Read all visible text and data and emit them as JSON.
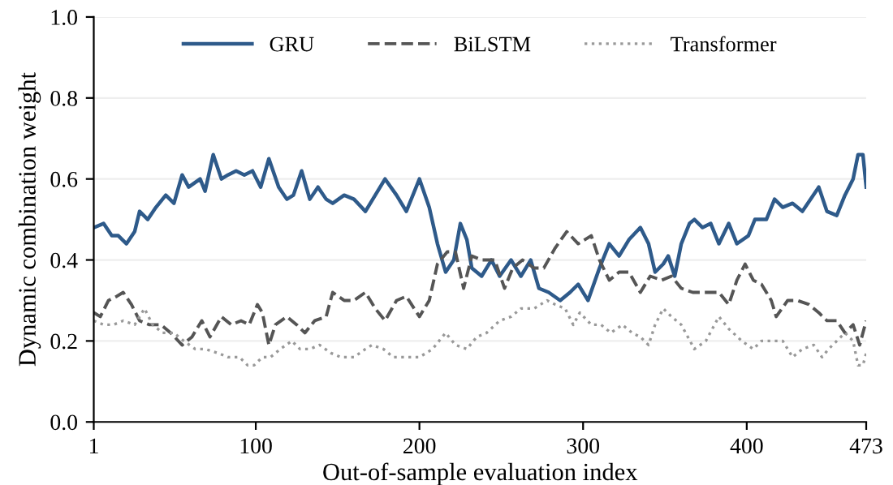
{
  "chart_data": {
    "type": "line",
    "xlabel": "Out-of-sample evaluation index",
    "ylabel": "Dynamic combination weight",
    "xlim": [
      1,
      473
    ],
    "ylim": [
      0,
      1
    ],
    "xticks": [
      1,
      100,
      200,
      300,
      400,
      473
    ],
    "yticks": [
      {
        "value": 0,
        "label": "0.0"
      },
      0.2,
      0.4,
      0.6,
      0.8,
      {
        "value": 1,
        "label": "1.0"
      }
    ],
    "grid": "y",
    "legend": "top",
    "marker": "none",
    "series": [
      {
        "name": "GRU",
        "color": "#2e5a8a",
        "line_style": "solid",
        "x": [
          1,
          7,
          12,
          16,
          21,
          26,
          29,
          34,
          39,
          45,
          50,
          55,
          59,
          66,
          69,
          74,
          79,
          83,
          88,
          93,
          98,
          103,
          108,
          114,
          119,
          123,
          128,
          133,
          138,
          143,
          147,
          154,
          160,
          167,
          173,
          179,
          186,
          192,
          200,
          206,
          211,
          216,
          221,
          225,
          229,
          232,
          238,
          244,
          249,
          256,
          262,
          268,
          273,
          279,
          286,
          292,
          297,
          303,
          310,
          316,
          322,
          328,
          335,
          340,
          344,
          349,
          352,
          356,
          360,
          365,
          368,
          373,
          378,
          383,
          389,
          394,
          401,
          405,
          412,
          417,
          422,
          428,
          434,
          444,
          449,
          455,
          460,
          465,
          468,
          471,
          473
        ],
        "values": [
          0.48,
          0.49,
          0.46,
          0.46,
          0.44,
          0.47,
          0.52,
          0.5,
          0.53,
          0.56,
          0.54,
          0.61,
          0.58,
          0.6,
          0.57,
          0.66,
          0.6,
          0.61,
          0.62,
          0.61,
          0.62,
          0.58,
          0.65,
          0.58,
          0.55,
          0.56,
          0.62,
          0.55,
          0.58,
          0.55,
          0.54,
          0.56,
          0.55,
          0.52,
          0.56,
          0.6,
          0.56,
          0.52,
          0.6,
          0.53,
          0.44,
          0.37,
          0.4,
          0.49,
          0.45,
          0.38,
          0.36,
          0.4,
          0.36,
          0.4,
          0.36,
          0.4,
          0.33,
          0.32,
          0.3,
          0.32,
          0.34,
          0.3,
          0.38,
          0.44,
          0.41,
          0.45,
          0.48,
          0.44,
          0.37,
          0.39,
          0.41,
          0.36,
          0.44,
          0.49,
          0.5,
          0.48,
          0.49,
          0.44,
          0.49,
          0.44,
          0.46,
          0.5,
          0.5,
          0.55,
          0.53,
          0.54,
          0.52,
          0.58,
          0.52,
          0.51,
          0.56,
          0.6,
          0.66,
          0.66,
          0.58
        ]
      },
      {
        "name": "BiLSTM",
        "color": "#555555",
        "line_style": "dashed",
        "x": [
          1,
          5,
          10,
          15,
          19,
          24,
          29,
          35,
          42,
          48,
          55,
          61,
          67,
          72,
          79,
          85,
          91,
          96,
          101,
          104,
          108,
          112,
          119,
          125,
          130,
          136,
          143,
          147,
          154,
          160,
          167,
          173,
          179,
          186,
          192,
          200,
          206,
          211,
          217,
          222,
          227,
          232,
          238,
          246,
          252,
          257,
          263,
          270,
          276,
          283,
          290,
          297,
          305,
          310,
          316,
          322,
          328,
          335,
          341,
          348,
          354,
          360,
          367,
          375,
          383,
          389,
          394,
          399,
          404,
          409,
          415,
          418,
          425,
          431,
          438,
          444,
          449,
          455,
          460,
          465,
          469,
          473
        ],
        "values": [
          0.27,
          0.26,
          0.3,
          0.31,
          0.32,
          0.29,
          0.25,
          0.24,
          0.24,
          0.22,
          0.19,
          0.21,
          0.25,
          0.21,
          0.26,
          0.24,
          0.25,
          0.24,
          0.29,
          0.27,
          0.19,
          0.24,
          0.26,
          0.24,
          0.22,
          0.25,
          0.26,
          0.32,
          0.3,
          0.3,
          0.32,
          0.28,
          0.25,
          0.3,
          0.31,
          0.26,
          0.3,
          0.39,
          0.42,
          0.42,
          0.33,
          0.41,
          0.4,
          0.4,
          0.33,
          0.38,
          0.4,
          0.38,
          0.38,
          0.43,
          0.47,
          0.44,
          0.46,
          0.4,
          0.35,
          0.37,
          0.37,
          0.32,
          0.36,
          0.35,
          0.36,
          0.33,
          0.32,
          0.32,
          0.32,
          0.29,
          0.35,
          0.39,
          0.35,
          0.34,
          0.3,
          0.26,
          0.3,
          0.3,
          0.29,
          0.27,
          0.25,
          0.25,
          0.22,
          0.24,
          0.19,
          0.25
        ]
      },
      {
        "name": "Transformer",
        "color": "#999999",
        "line_style": "dotted",
        "x": [
          1,
          7,
          13,
          19,
          26,
          32,
          37,
          43,
          50,
          56,
          63,
          69,
          77,
          83,
          90,
          95,
          99,
          104,
          109,
          115,
          122,
          127,
          133,
          139,
          146,
          152,
          160,
          167,
          171,
          178,
          184,
          192,
          200,
          208,
          216,
          222,
          229,
          235,
          241,
          249,
          256,
          262,
          270,
          278,
          283,
          289,
          294,
          298,
          305,
          311,
          317,
          324,
          330,
          335,
          340,
          344,
          349,
          354,
          360,
          368,
          375,
          383,
          389,
          397,
          404,
          409,
          415,
          422,
          428,
          434,
          441,
          446,
          450,
          455,
          460,
          465,
          468,
          471,
          473
        ],
        "values": [
          0.25,
          0.24,
          0.24,
          0.25,
          0.24,
          0.28,
          0.24,
          0.22,
          0.22,
          0.2,
          0.18,
          0.18,
          0.17,
          0.16,
          0.16,
          0.14,
          0.14,
          0.16,
          0.16,
          0.18,
          0.2,
          0.18,
          0.18,
          0.19,
          0.17,
          0.16,
          0.16,
          0.18,
          0.19,
          0.18,
          0.16,
          0.16,
          0.16,
          0.18,
          0.22,
          0.19,
          0.18,
          0.21,
          0.22,
          0.25,
          0.26,
          0.28,
          0.28,
          0.3,
          0.29,
          0.28,
          0.24,
          0.27,
          0.24,
          0.24,
          0.22,
          0.24,
          0.22,
          0.21,
          0.19,
          0.24,
          0.28,
          0.26,
          0.24,
          0.18,
          0.2,
          0.26,
          0.23,
          0.2,
          0.18,
          0.2,
          0.2,
          0.2,
          0.16,
          0.18,
          0.19,
          0.16,
          0.18,
          0.2,
          0.22,
          0.2,
          0.14,
          0.14,
          0.17
        ]
      }
    ]
  }
}
